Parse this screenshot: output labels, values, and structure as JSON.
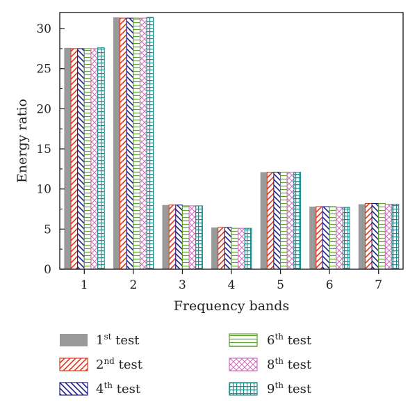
{
  "chart_data": {
    "type": "bar",
    "xlabel": "Frequency bands",
    "ylabel": "Energy ratio",
    "categories": [
      "1",
      "2",
      "3",
      "4",
      "5",
      "6",
      "7"
    ],
    "ylim": [
      0,
      32
    ],
    "yticks": [
      0,
      5,
      10,
      15,
      20,
      25,
      30
    ],
    "legend_position": "bottom",
    "series": [
      {
        "name": "1st test",
        "ordinal": "1",
        "suffix": "st",
        "color": "#9a9a9a",
        "pattern": "solid",
        "values": [
          27.6,
          31.4,
          8.0,
          5.2,
          12.1,
          7.8,
          8.1
        ]
      },
      {
        "name": "2nd test",
        "ordinal": "2",
        "suffix": "nd",
        "color": "#d9381e",
        "pattern": "forward-diagonal",
        "values": [
          27.5,
          31.3,
          8.0,
          5.2,
          12.1,
          7.8,
          8.2
        ]
      },
      {
        "name": "4th test",
        "ordinal": "4",
        "suffix": "th",
        "color": "#1f1f8f",
        "pattern": "back-diagonal",
        "values": [
          27.5,
          31.3,
          8.0,
          5.2,
          12.1,
          7.8,
          8.2
        ]
      },
      {
        "name": "6th test",
        "ordinal": "6",
        "suffix": "th",
        "color": "#5aa02c",
        "pattern": "horizontal",
        "values": [
          27.5,
          31.3,
          7.9,
          5.1,
          12.1,
          7.8,
          8.2
        ]
      },
      {
        "name": "8th test",
        "ordinal": "8",
        "suffix": "th",
        "color": "#d070c0",
        "pattern": "crosshatch",
        "values": [
          27.5,
          31.3,
          7.9,
          5.1,
          12.1,
          7.7,
          8.1
        ]
      },
      {
        "name": "9th test",
        "ordinal": "9",
        "suffix": "th",
        "color": "#1f8a8a",
        "pattern": "grid",
        "values": [
          27.6,
          31.4,
          7.9,
          5.1,
          12.1,
          7.7,
          8.1
        ]
      }
    ]
  }
}
